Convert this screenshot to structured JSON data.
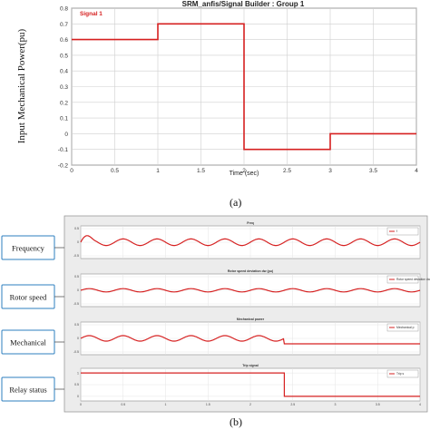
{
  "figure": {
    "caption_a": "(a)",
    "caption_b": "(b)"
  },
  "colors": {
    "signal": "#d62020",
    "grid": "#cfcfcf",
    "panel_bg": "#ffffff",
    "panel_frame": "#8d8d8d",
    "scope_border": "#9a9a9a",
    "label_box": "#2e7fbf"
  },
  "chart_data": [
    {
      "type": "line",
      "title": "SRM_anfis/Signal Builder : Group 1",
      "legend": "Signal 1",
      "xlabel": "Time (sec)",
      "ylabel": "Input Mechanical Power(pu)",
      "xlim": [
        0,
        4
      ],
      "ylim": [
        -0.2,
        0.8
      ],
      "xticks": [
        "0",
        "0.5",
        "1",
        "1.5",
        "2",
        "2.5",
        "3",
        "3.5",
        "4"
      ],
      "yticks": [
        "-0.2",
        "-0.1",
        "0",
        "0.1",
        "0.2",
        "0.3",
        "0.4",
        "0.5",
        "0.6",
        "0.7",
        "0.8"
      ],
      "grid": true,
      "x": [
        0,
        1,
        1,
        2,
        2,
        3,
        3,
        4
      ],
      "y": [
        0.6,
        0.6,
        0.7,
        0.7,
        -0.1,
        -0.1,
        0.0,
        0.0
      ]
    },
    {
      "type": "line",
      "panels": [
        {
          "label": "Frequency",
          "title": "Freq",
          "legend": "f",
          "yticks": [
            "-0.5",
            "0",
            "0.5"
          ],
          "ylim": [
            -0.6,
            0.6
          ],
          "shape": "oscillation",
          "amplitude": 0.12,
          "offset": 0.0,
          "periods": 10
        },
        {
          "label": "Rotor speed",
          "title": "Rotor speed deviation dw (pu)",
          "legend": "Rotor speed deviation dw",
          "yticks": [
            "-0.5",
            "0",
            "0.5"
          ],
          "ylim": [
            -0.6,
            0.6
          ],
          "shape": "oscillation",
          "amplitude": 0.06,
          "offset": 0.0,
          "periods": 10
        },
        {
          "label": "Mechanical",
          "title": "Mechanical power",
          "legend": "Mechanical p",
          "yticks": [
            "-0.5",
            "0",
            "0.5"
          ],
          "ylim": [
            -0.6,
            0.6
          ],
          "shape": "oscillation_then_step",
          "amplitude": 0.1,
          "offset": 0.0,
          "step_x": 0.6,
          "step_value": -0.2
        },
        {
          "label": "Relay status",
          "title": "Trip signal",
          "legend": "Trip s",
          "yticks": [
            "0",
            "0.5",
            "1"
          ],
          "ylim": [
            -0.2,
            1.2
          ],
          "shape": "step",
          "before": 1,
          "after": 0,
          "step_x": 0.6
        }
      ],
      "xticks": [
        "0",
        "0.5",
        "1",
        "1.5",
        "2",
        "2.5",
        "3",
        "3.5",
        "4"
      ],
      "xlim": [
        0,
        4
      ]
    }
  ]
}
